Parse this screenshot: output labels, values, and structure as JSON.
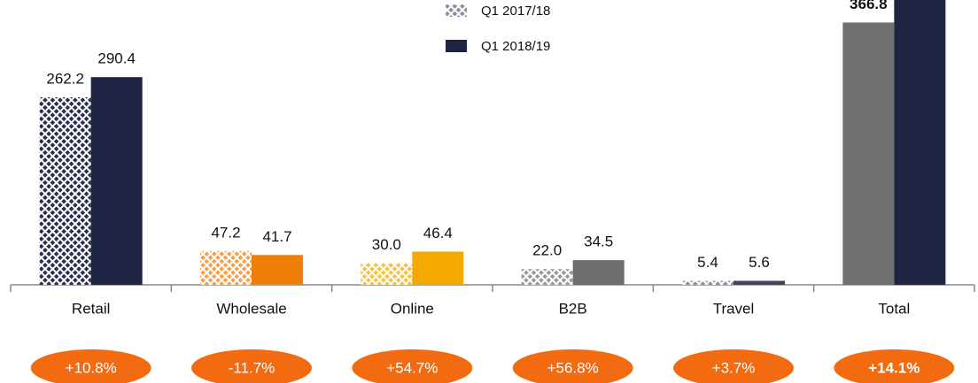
{
  "chart_data": {
    "type": "bar",
    "categories": [
      "Retail",
      "Wholesale",
      "Online",
      "B2B",
      "Travel",
      "Total"
    ],
    "series": [
      {
        "name": "Q1 2017/18",
        "color": "#8a8fa3",
        "values": [
          262.2,
          47.2,
          30.0,
          22.0,
          5.4,
          366.8
        ],
        "value_labels": [
          "262.2",
          "47.2",
          "30.0",
          "22.0",
          "5.4",
          "366.8"
        ],
        "colors": [
          "#2a2f52",
          "#f5a04a",
          "#f8c240",
          "#9a9a9a",
          "#8a8fa3",
          "#707070"
        ],
        "hatched": [
          true,
          true,
          true,
          true,
          true,
          false
        ]
      },
      {
        "name": "Q1 2018/19",
        "color": "#1f2444",
        "values": [
          290.4,
          41.7,
          46.4,
          34.5,
          5.6,
          418.6
        ],
        "value_labels": [
          "290.4",
          "41.7",
          "46.4",
          "34.5",
          "5.6",
          null
        ],
        "colors": [
          "#1f2444",
          "#f07f0a",
          "#f5a800",
          "#6e6e6e",
          "#3d4468",
          "#1f2444"
        ],
        "hatched": [
          false,
          false,
          false,
          false,
          false,
          false
        ]
      }
    ],
    "growth_labels": [
      "+10.8%",
      "-11.7%",
      "+54.7%",
      "+56.8%",
      "+3.7%",
      "+14.1%"
    ],
    "growth_color": "#f26b10",
    "ylim": [
      0,
      400
    ]
  }
}
